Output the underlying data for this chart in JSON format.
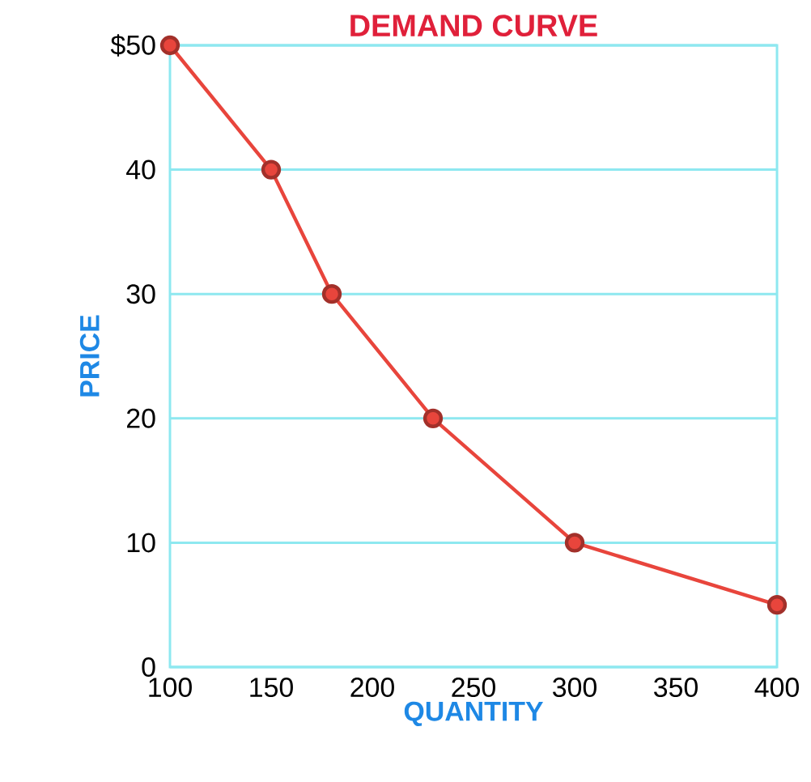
{
  "chart_data": {
    "type": "line",
    "title": "DEMAND CURVE",
    "xlabel": "QUANTITY",
    "ylabel": "PRICE",
    "x": [
      100,
      150,
      180,
      230,
      300,
      400
    ],
    "series": [
      {
        "color": "#e8453c",
        "values": [
          50,
          40,
          30,
          20,
          10,
          5
        ]
      }
    ],
    "xlim": [
      100,
      400
    ],
    "ylim": [
      0,
      50
    ],
    "xticks": [
      100,
      150,
      200,
      250,
      300,
      350,
      400
    ],
    "yticks": [
      0,
      10,
      20,
      30,
      40,
      {
        "value": 50,
        "label": "$50"
      }
    ],
    "grid": "y",
    "marker": "circle",
    "line_style": "solid"
  }
}
